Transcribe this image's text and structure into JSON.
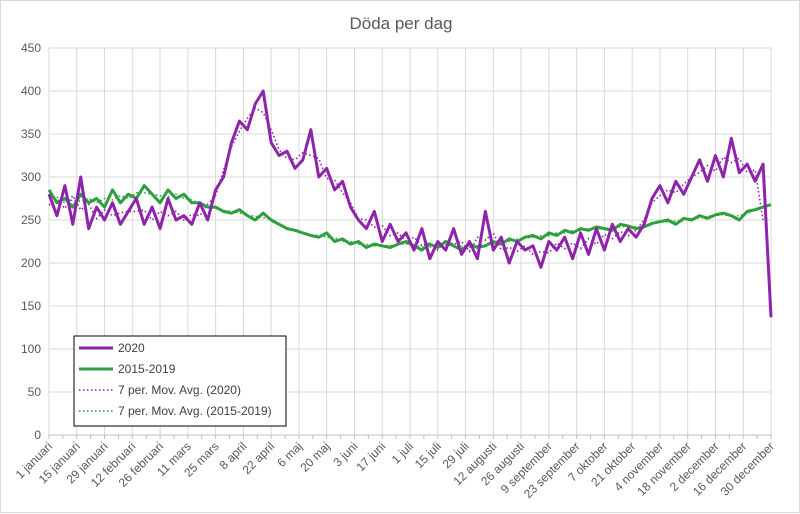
{
  "chart_data": {
    "type": "line",
    "title": "Döda per dag",
    "xlabel": "",
    "ylabel": "",
    "ylim": [
      0,
      450
    ],
    "yticks": [
      0,
      50,
      100,
      150,
      200,
      250,
      300,
      350,
      400,
      450
    ],
    "grid": true,
    "legend_position": "bottom-left",
    "x_tick_labels": [
      "1 januari",
      "15 januari",
      "29 januari",
      "12 februari",
      "26 februari",
      "11 mars",
      "25 mars",
      "8 april",
      "22 april",
      "6 maj",
      "20 maj",
      "3 juni",
      "17 juni",
      "1 juli",
      "15 juli",
      "29 juli",
      "12 augusti",
      "26 augusti",
      "9 september",
      "23 september",
      "7 oktober",
      "21 oktober",
      "4 november",
      "18 november",
      "2 december",
      "16 december",
      "30 december"
    ],
    "series": [
      {
        "name": "2020",
        "color": "#8e24aa",
        "style": "solid",
        "values": [
          280,
          255,
          290,
          245,
          300,
          240,
          265,
          250,
          270,
          245,
          260,
          275,
          245,
          265,
          240,
          275,
          250,
          255,
          245,
          270,
          250,
          285,
          300,
          340,
          365,
          355,
          385,
          400,
          340,
          325,
          330,
          310,
          320,
          355,
          300,
          310,
          285,
          295,
          265,
          250,
          240,
          260,
          225,
          245,
          225,
          235,
          215,
          240,
          205,
          225,
          215,
          240,
          210,
          225,
          205,
          260,
          215,
          230,
          200,
          225,
          215,
          220,
          195,
          225,
          215,
          230,
          205,
          235,
          210,
          240,
          215,
          245,
          225,
          240,
          230,
          245,
          275,
          290,
          270,
          295,
          280,
          300,
          320,
          295,
          325,
          300,
          345,
          305,
          315,
          295,
          315,
          137
        ]
      },
      {
        "name": "2015-2019",
        "color": "#2e9e3e",
        "style": "solid",
        "values": [
          285,
          270,
          275,
          265,
          280,
          270,
          275,
          265,
          285,
          270,
          280,
          275,
          290,
          280,
          270,
          285,
          275,
          280,
          270,
          270,
          265,
          265,
          260,
          258,
          262,
          255,
          250,
          258,
          250,
          245,
          240,
          238,
          235,
          232,
          230,
          235,
          225,
          228,
          222,
          225,
          218,
          222,
          220,
          218,
          222,
          225,
          220,
          215,
          222,
          218,
          225,
          220,
          215,
          222,
          218,
          220,
          225,
          222,
          228,
          225,
          230,
          232,
          228,
          235,
          232,
          238,
          235,
          240,
          238,
          242,
          240,
          238,
          245,
          243,
          240,
          242,
          246,
          248,
          250,
          245,
          252,
          250,
          255,
          252,
          256,
          258,
          255,
          250,
          260,
          262,
          265,
          268
        ]
      },
      {
        "name": "7 per. Mov. Avg. (2020)",
        "color": "#8e24aa",
        "style": "dotted"
      },
      {
        "name": "7 per. Mov. Avg. (2015-2019)",
        "color": "#2e9e3e",
        "style": "dotted"
      }
    ]
  }
}
